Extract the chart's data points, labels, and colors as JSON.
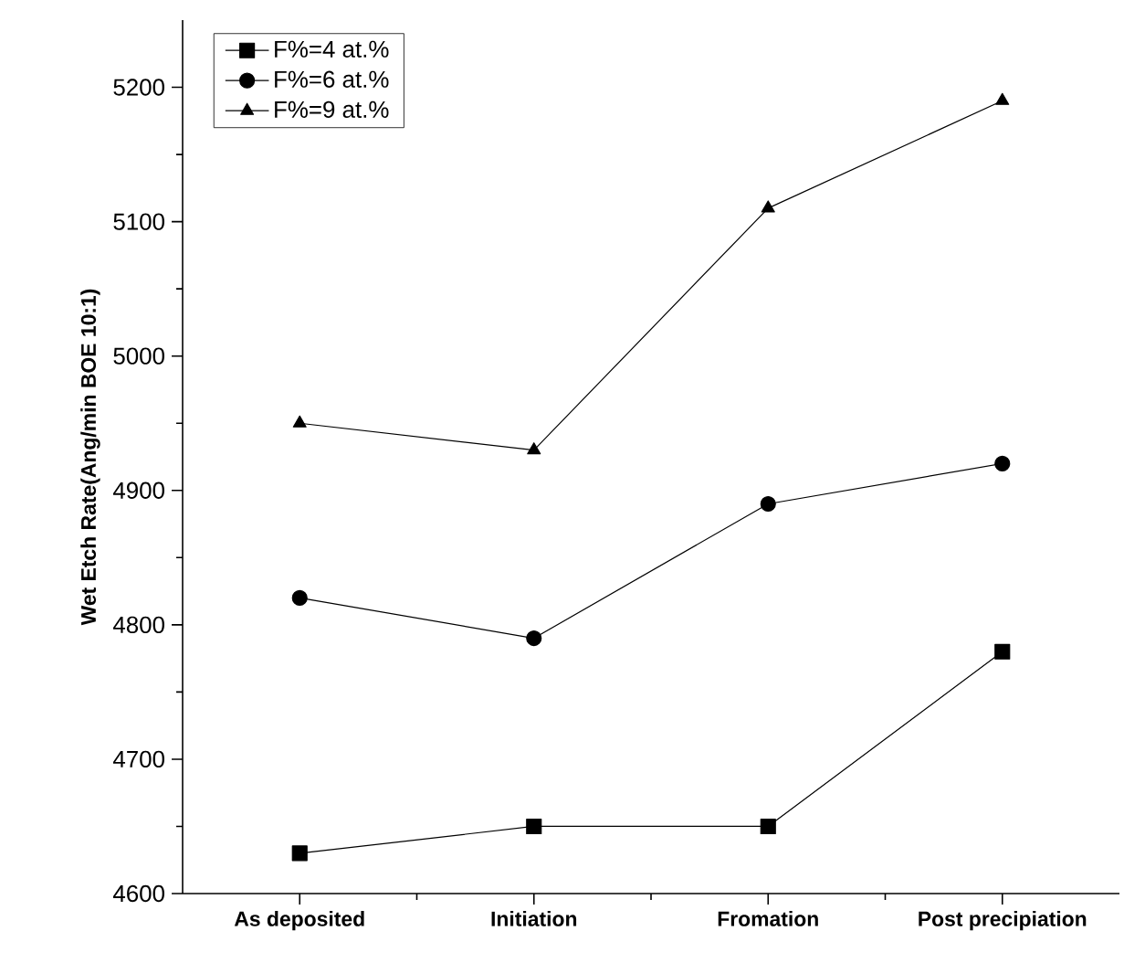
{
  "chart_data": {
    "type": "line",
    "ylabel": "Wet Etch Rate(Ang/min BOE 10:1)",
    "categories": [
      "As deposited",
      "Initiation",
      "Fromation",
      "Post precipiation"
    ],
    "series": [
      {
        "name": "F%=4 at.%",
        "color": "#000000",
        "marker": "square",
        "values": [
          4630,
          4650,
          4650,
          4780
        ]
      },
      {
        "name": "F%=6 at.%",
        "color": "#000000",
        "marker": "circle",
        "values": [
          4820,
          4790,
          4890,
          4920
        ]
      },
      {
        "name": "F%=9 at.%",
        "color": "#000000",
        "marker": "triangle",
        "values": [
          4950,
          4930,
          5110,
          5190
        ]
      }
    ],
    "ylim": [
      4600,
      5250
    ],
    "yticks": [
      4600,
      4700,
      4800,
      4900,
      5000,
      5100,
      5200
    ],
    "grid": false,
    "legend": "top left",
    "line_style": "solid"
  }
}
